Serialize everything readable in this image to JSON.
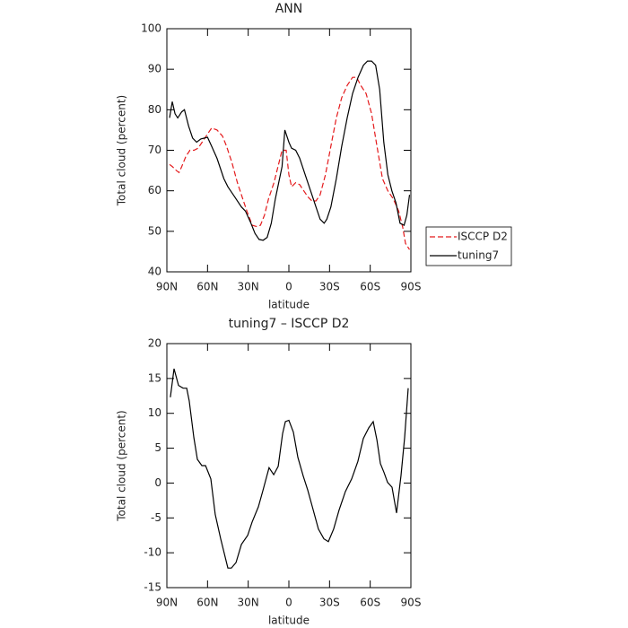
{
  "chart_data": [
    {
      "type": "line",
      "title": "ANN",
      "x_label": "latitude",
      "y_label": "Total cloud (percent)",
      "xlim": [
        90,
        -90
      ],
      "ylim": [
        40,
        100
      ],
      "xticks": [
        {
          "value": 90,
          "label": "90N"
        },
        {
          "value": 60,
          "label": "60N"
        },
        {
          "value": 30,
          "label": "30N"
        },
        0,
        {
          "value": -30,
          "label": "30S"
        },
        {
          "value": -60,
          "label": "60S"
        },
        {
          "value": -90,
          "label": "90S"
        }
      ],
      "yticks": [
        40,
        50,
        60,
        70,
        80,
        90,
        100
      ],
      "legend": "outside right",
      "series": [
        {
          "name": "ISCCP D2",
          "color": "#e41a1c",
          "dash": "dashed",
          "x": [
            88,
            86,
            83,
            81,
            79,
            76,
            73,
            70,
            67,
            64,
            61,
            57,
            53,
            49,
            46,
            42,
            38,
            34,
            31,
            27,
            24,
            21,
            18,
            15,
            11,
            8,
            5,
            2,
            0,
            -2,
            -5,
            -8,
            -11,
            -14,
            -17,
            -20,
            -23,
            -27,
            -31,
            -35,
            -39,
            -43,
            -47,
            -50,
            -53,
            -57,
            -61,
            -65,
            -69,
            -73,
            -77,
            -81,
            -84,
            -86,
            -89
          ],
          "values": [
            66.5,
            66,
            65,
            64.5,
            66,
            68.5,
            70,
            70,
            70.5,
            72,
            73.5,
            75.5,
            75,
            73.5,
            71,
            67,
            62,
            58,
            55,
            51.5,
            51.2,
            51.5,
            54,
            58,
            62,
            66,
            70,
            70,
            64,
            61,
            62,
            61.5,
            60,
            58.5,
            57.5,
            57.5,
            59,
            64,
            71,
            78,
            83,
            86,
            88,
            88,
            86,
            84,
            79,
            71,
            63,
            60,
            58,
            55,
            51,
            47,
            45.5
          ]
        },
        {
          "name": "tuning7",
          "color": "#000000",
          "dash": "solid",
          "x": [
            88,
            86,
            84,
            82,
            79,
            77,
            74,
            71,
            68,
            65,
            60,
            57,
            53,
            48,
            45,
            40,
            35,
            32,
            28,
            25,
            22,
            19,
            16,
            13,
            10,
            5,
            3,
            0,
            -2,
            -5,
            -8,
            -12,
            -16,
            -20,
            -23,
            -26,
            -28,
            -31,
            -35,
            -39,
            -43,
            -47,
            -51,
            -55,
            -58,
            -61,
            -64,
            -67,
            -70,
            -73,
            -76,
            -79,
            -82,
            -85,
            -87,
            -89
          ],
          "values": [
            78,
            82,
            79,
            78,
            79.5,
            80,
            76,
            73,
            72,
            72.8,
            73.2,
            71,
            68,
            63,
            61,
            58.5,
            56,
            55,
            52,
            49.5,
            48,
            47.8,
            48.5,
            52,
            58,
            66,
            75,
            72,
            70.5,
            70,
            68,
            64,
            60,
            56,
            53,
            52,
            53,
            56,
            63,
            71,
            78,
            84,
            88,
            91,
            92,
            92,
            91,
            85,
            72,
            64,
            60,
            57,
            52,
            51.5,
            54,
            59
          ]
        }
      ]
    },
    {
      "type": "line",
      "title": "tuning7 – ISCCP D2",
      "x_label": "latitude",
      "y_label": "Total cloud (percent)",
      "xlim": [
        90,
        -90
      ],
      "ylim": [
        -15,
        20
      ],
      "xticks": [
        {
          "value": 90,
          "label": "90N"
        },
        {
          "value": 60,
          "label": "60N"
        },
        {
          "value": 30,
          "label": "30N"
        },
        0,
        {
          "value": -30,
          "label": "30S"
        },
        {
          "value": -60,
          "label": "60S"
        },
        {
          "value": -90,
          "label": "90S"
        }
      ],
      "yticks": [
        -15,
        -10,
        -5,
        0,
        5,
        10,
        15,
        20
      ],
      "color": "#000000",
      "x": [
        87.4,
        84.7,
        81.4,
        78,
        75.4,
        73.5,
        70.1,
        67.5,
        64.2,
        61.5,
        57.6,
        54.3,
        50.3,
        45,
        42.4,
        39,
        35,
        30.4,
        27.1,
        22.5,
        19.2,
        14.6,
        11.2,
        7.9,
        4.6,
        2.6,
        0,
        -3.3,
        -6.6,
        -10.6,
        -13.9,
        -17.9,
        -21.8,
        -25.8,
        -29.1,
        -33,
        -37,
        -41.7,
        -46.3,
        -50.9,
        -54.9,
        -58.9,
        -62.2,
        -64.9,
        -67.5,
        -70.2,
        -72.8,
        -76.1,
        -79.4,
        -82.7,
        -85.4,
        -88
      ],
      "values": [
        12.3,
        16.4,
        14,
        13.6,
        13.6,
        11.8,
        6.5,
        3.4,
        2.5,
        2.5,
        0.6,
        -4.5,
        -8,
        -12.2,
        -12.2,
        -11.4,
        -8.8,
        -7.5,
        -5.6,
        -3.4,
        -1.1,
        2.2,
        1.2,
        2.4,
        7.1,
        8.8,
        9,
        7.3,
        3.7,
        1,
        -1,
        -3.8,
        -6.6,
        -8,
        -8.4,
        -6.6,
        -3.9,
        -1.2,
        0.6,
        3.1,
        6.4,
        7.9,
        8.8,
        6.2,
        2.8,
        1.5,
        0.1,
        -0.6,
        -4.3,
        1.1,
        6.5,
        13.6
      ]
    }
  ]
}
